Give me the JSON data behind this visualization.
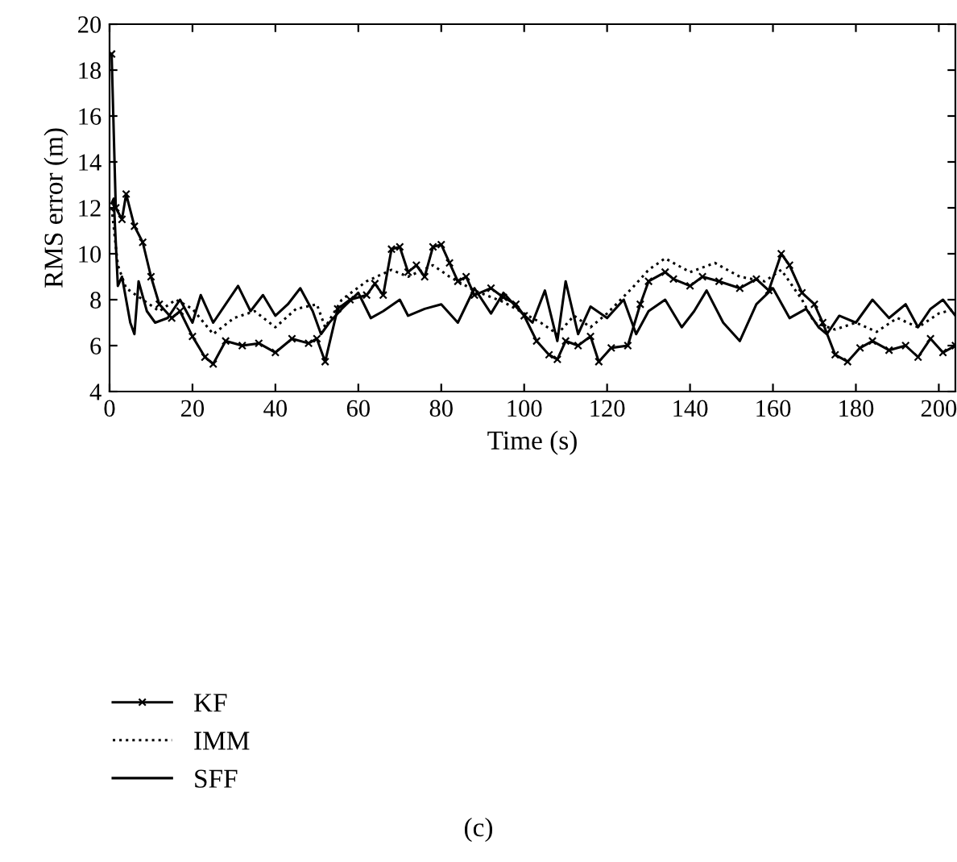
{
  "chart_data": {
    "type": "line",
    "xlabel": "Time (s)",
    "ylabel": "RMS error (m)",
    "xlim": [
      0,
      204
    ],
    "ylim": [
      4,
      20
    ],
    "xticks": [
      0,
      20,
      40,
      60,
      80,
      100,
      120,
      140,
      160,
      180,
      200
    ],
    "yticks": [
      4,
      6,
      8,
      10,
      12,
      14,
      16,
      18,
      20
    ],
    "grid": false,
    "legend": "bottom left",
    "annotations": [
      "(c)"
    ],
    "series": [
      {
        "name": "KF",
        "color": "#000000",
        "marker": "cross",
        "line_style": "solid",
        "x": [
          0.5,
          1.5,
          3,
          4,
          6,
          8,
          10,
          12,
          15,
          17,
          20,
          23,
          25,
          28,
          32,
          36,
          40,
          44,
          48,
          50,
          52,
          55,
          58,
          62,
          64,
          66,
          68,
          70,
          72,
          74,
          76,
          78,
          80,
          82,
          84,
          86,
          88,
          92,
          95,
          98,
          100,
          103,
          106,
          108,
          110,
          113,
          116,
          118,
          121,
          125,
          128,
          130,
          134,
          136,
          140,
          143,
          147,
          152,
          156,
          159,
          162,
          164,
          167,
          170,
          172,
          175,
          178,
          181,
          184,
          188,
          192,
          195,
          198,
          201,
          204
        ],
        "values": [
          18.7,
          12,
          11.5,
          12.6,
          11.2,
          10.5,
          9,
          7.8,
          7.2,
          7.5,
          6.4,
          5.5,
          5.2,
          6.2,
          6,
          6.1,
          5.7,
          6.3,
          6.1,
          6.3,
          5.3,
          7.6,
          8,
          8.2,
          8.7,
          8.2,
          10.2,
          10.3,
          9.2,
          9.5,
          9,
          10.3,
          10.4,
          9.6,
          8.8,
          9,
          8.2,
          8.5,
          8.1,
          7.8,
          7.3,
          6.2,
          5.6,
          5.4,
          6.2,
          6,
          6.4,
          5.3,
          5.9,
          6,
          7.8,
          8.8,
          9.2,
          8.9,
          8.6,
          9,
          8.8,
          8.5,
          8.9,
          8.4,
          10,
          9.5,
          8.3,
          7.8,
          7,
          5.6,
          5.3,
          5.9,
          6.2,
          5.8,
          6,
          5.5,
          6.3,
          5.7,
          6
        ]
      },
      {
        "name": "IMM",
        "color": "#000000",
        "marker": "none",
        "line_style": "dotted",
        "x": [
          0.5,
          2,
          4,
          8,
          12,
          16,
          20,
          25,
          30,
          35,
          40,
          45,
          50,
          52,
          56,
          62,
          68,
          72,
          78,
          82,
          88,
          95,
          100,
          104,
          108,
          112,
          116,
          120,
          126,
          130,
          134,
          140,
          146,
          152,
          158,
          162,
          167,
          170,
          175,
          180,
          185,
          190,
          195,
          200,
          204
        ],
        "values": [
          12,
          9.5,
          8.5,
          8,
          7.5,
          8,
          7.6,
          6.5,
          7.2,
          7.5,
          6.8,
          7.6,
          7.8,
          6.8,
          8,
          8.8,
          9.3,
          9,
          9.5,
          9,
          8.4,
          7.9,
          7.4,
          7,
          6.5,
          7.3,
          6.8,
          7.4,
          8.5,
          9.3,
          9.8,
          9.2,
          9.6,
          9,
          8.8,
          9.3,
          8,
          7,
          6.7,
          7,
          6.6,
          7.2,
          6.8,
          7.4,
          7.6
        ]
      },
      {
        "name": "SFF",
        "color": "#000000",
        "marker": "none",
        "line_style": "solid",
        "x": [
          0.5,
          1,
          2,
          3,
          5,
          6,
          7,
          9,
          11,
          14,
          17,
          20,
          22,
          25,
          28,
          31,
          34,
          37,
          40,
          43,
          46,
          49,
          51,
          53,
          56,
          60,
          63,
          66,
          70,
          72,
          76,
          80,
          84,
          88,
          92,
          95,
          99,
          102,
          105,
          108,
          110,
          113,
          116,
          120,
          124,
          127,
          130,
          134,
          138,
          141,
          144,
          148,
          152,
          156,
          160,
          164,
          168,
          171,
          173,
          176,
          180,
          184,
          188,
          192,
          195,
          198,
          201,
          204
        ],
        "values": [
          12.2,
          12.4,
          8.6,
          9,
          7,
          6.5,
          8.8,
          7.5,
          7,
          7.2,
          8,
          7,
          8.2,
          7,
          7.8,
          8.6,
          7.5,
          8.2,
          7.3,
          7.8,
          8.5,
          7.5,
          6.5,
          7,
          7.6,
          8.3,
          7.2,
          7.5,
          8,
          7.3,
          7.6,
          7.8,
          7,
          8.5,
          7.4,
          8.3,
          7.5,
          7,
          8.4,
          6.2,
          8.8,
          6.5,
          7.7,
          7.2,
          8,
          6.5,
          7.5,
          8,
          6.8,
          7.5,
          8.4,
          7,
          6.2,
          7.8,
          8.5,
          7.2,
          7.6,
          6.8,
          6.5,
          7.3,
          7,
          8,
          7.2,
          7.8,
          6.8,
          7.6,
          8,
          7.3
        ]
      }
    ]
  }
}
